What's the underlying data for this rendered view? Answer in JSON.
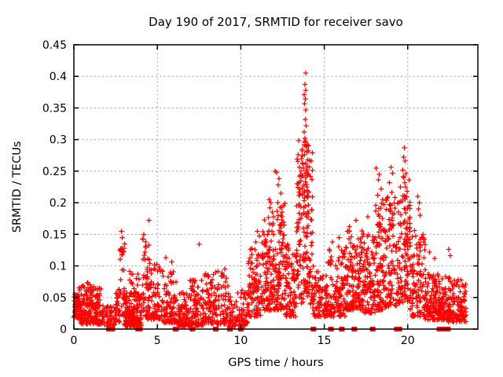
{
  "window": {
    "background": "#ffffff"
  },
  "chart_data": {
    "type": "scatter",
    "title": "Day 190 of 2017, SRMTID for receiver savo",
    "xlabel": "GPS time / hours",
    "ylabel": "SRMTID / TECUs",
    "xlim": [
      0,
      24.2
    ],
    "ylim": [
      0,
      0.45
    ],
    "xticks": [
      0,
      5,
      10,
      15,
      20
    ],
    "yticks": [
      0,
      0.05,
      0.1,
      0.15,
      0.2,
      0.25,
      0.3,
      0.35,
      0.4,
      0.45
    ],
    "ytick_labels": [
      "0",
      "0.05",
      "0.1",
      "0.15",
      "0.2",
      "0.25",
      "0.3",
      "0.35",
      "0.4",
      "0.45"
    ],
    "xtick_labels": [
      "0",
      "5",
      "10",
      "15",
      "20"
    ],
    "grid": {
      "style": "dotted",
      "color": "#a0a0a0"
    },
    "frame_color": "#000000",
    "marker": "plus",
    "marker_color": "#ff0000",
    "zero_marker": "filled-square",
    "seed": 7,
    "clusters_comment": "each cluster = [t_start, t_end, n_points, y_base, y_peak, skew] ; points drawn from t uniform, y = base+(peak-base)*u^skew (skew>1 concentrates near base) — encodes the density envelope read from the plot",
    "clusters": [
      [
        0.0,
        0.35,
        55,
        0.018,
        0.055,
        1.2
      ],
      [
        0.3,
        1.65,
        190,
        0.008,
        0.068,
        1.9
      ],
      [
        0.5,
        1.5,
        8,
        0.055,
        0.078,
        1.0
      ],
      [
        1.65,
        2.45,
        45,
        0.005,
        0.038,
        1.6
      ],
      [
        2.45,
        2.75,
        28,
        0.01,
        0.065,
        1.4
      ],
      [
        2.72,
        3.05,
        30,
        0.02,
        0.135,
        1.3
      ],
      [
        3.0,
        4.05,
        160,
        0.005,
        0.058,
        2.1
      ],
      [
        3.3,
        4.0,
        22,
        0.05,
        0.095,
        1.4
      ],
      [
        4.05,
        4.55,
        40,
        0.02,
        0.145,
        1.4
      ],
      [
        4.4,
        5.25,
        85,
        0.015,
        0.105,
        1.7
      ],
      [
        5.25,
        6.25,
        95,
        0.01,
        0.092,
        1.9
      ],
      [
        6.25,
        6.95,
        75,
        0.005,
        0.058,
        1.7
      ],
      [
        6.95,
        7.75,
        95,
        0.006,
        0.078,
        1.9
      ],
      [
        7.75,
        9.25,
        140,
        0.008,
        0.092,
        1.9
      ],
      [
        9.25,
        10.45,
        95,
        0.005,
        0.062,
        1.8
      ],
      [
        10.45,
        11.25,
        95,
        0.02,
        0.128,
        1.6
      ],
      [
        11.25,
        12.05,
        115,
        0.03,
        0.178,
        1.5
      ],
      [
        12.05,
        12.65,
        95,
        0.03,
        0.21,
        1.45
      ],
      [
        12.65,
        13.35,
        95,
        0.02,
        0.135,
        1.6
      ],
      [
        13.35,
        14.3,
        170,
        0.04,
        0.3,
        1.25
      ],
      [
        14.3,
        15.15,
        85,
        0.02,
        0.105,
        1.7
      ],
      [
        15.15,
        16.25,
        125,
        0.02,
        0.132,
        1.65
      ],
      [
        16.25,
        17.25,
        135,
        0.03,
        0.158,
        1.5
      ],
      [
        17.25,
        18.05,
        105,
        0.025,
        0.152,
        1.55
      ],
      [
        18.05,
        18.65,
        95,
        0.03,
        0.205,
        1.4
      ],
      [
        18.65,
        19.45,
        105,
        0.035,
        0.225,
        1.4
      ],
      [
        19.45,
        20.15,
        115,
        0.04,
        0.245,
        1.3
      ],
      [
        20.15,
        21.05,
        105,
        0.02,
        0.15,
        1.65
      ],
      [
        21.05,
        22.35,
        170,
        0.015,
        0.088,
        1.75
      ],
      [
        22.35,
        23.5,
        130,
        0.012,
        0.082,
        1.75
      ]
    ],
    "notable_points_comment": "standout extremes read directly off the plot as [t_hours, SRMTID_TECUs]",
    "notable_points": [
      [
        2.8,
        0.127
      ],
      [
        2.85,
        0.155
      ],
      [
        2.9,
        0.145
      ],
      [
        2.95,
        0.122
      ],
      [
        4.5,
        0.172
      ],
      [
        4.2,
        0.15
      ],
      [
        4.15,
        0.143
      ],
      [
        4.3,
        0.138
      ],
      [
        5.5,
        0.113
      ],
      [
        5.85,
        0.106
      ],
      [
        7.5,
        0.134
      ],
      [
        9.05,
        0.095
      ],
      [
        10.9,
        0.138
      ],
      [
        11.0,
        0.155
      ],
      [
        11.1,
        0.147
      ],
      [
        11.7,
        0.205
      ],
      [
        11.8,
        0.2
      ],
      [
        11.75,
        0.192
      ],
      [
        11.88,
        0.185
      ],
      [
        11.95,
        0.178
      ],
      [
        12.05,
        0.25
      ],
      [
        12.15,
        0.248
      ],
      [
        12.3,
        0.238
      ],
      [
        12.25,
        0.228
      ],
      [
        12.4,
        0.215
      ],
      [
        13.5,
        0.232
      ],
      [
        13.55,
        0.222
      ],
      [
        13.62,
        0.27
      ],
      [
        13.7,
        0.263
      ],
      [
        13.75,
        0.255
      ],
      [
        13.88,
        0.405
      ],
      [
        13.85,
        0.387
      ],
      [
        13.9,
        0.378
      ],
      [
        13.8,
        0.371
      ],
      [
        13.87,
        0.364
      ],
      [
        13.83,
        0.357
      ],
      [
        13.9,
        0.347
      ],
      [
        13.86,
        0.332
      ],
      [
        13.92,
        0.322
      ],
      [
        13.8,
        0.312
      ],
      [
        13.84,
        0.302
      ],
      [
        13.79,
        0.296
      ],
      [
        13.9,
        0.29
      ],
      [
        13.95,
        0.282
      ],
      [
        13.82,
        0.276
      ],
      [
        14.0,
        0.268
      ],
      [
        13.88,
        0.262
      ],
      [
        13.93,
        0.252
      ],
      [
        13.85,
        0.246
      ],
      [
        13.9,
        0.24
      ],
      [
        13.87,
        0.233
      ],
      [
        13.95,
        0.225
      ],
      [
        13.83,
        0.218
      ],
      [
        13.97,
        0.21
      ],
      [
        13.8,
        0.203
      ],
      [
        15.5,
        0.138
      ],
      [
        15.9,
        0.145
      ],
      [
        16.5,
        0.162
      ],
      [
        16.9,
        0.172
      ],
      [
        17.6,
        0.178
      ],
      [
        18.1,
        0.255
      ],
      [
        18.3,
        0.245
      ],
      [
        18.25,
        0.236
      ],
      [
        18.4,
        0.222
      ],
      [
        18.2,
        0.212
      ],
      [
        18.5,
        0.205
      ],
      [
        18.9,
        0.232
      ],
      [
        19.0,
        0.256
      ],
      [
        19.1,
        0.247
      ],
      [
        19.7,
        0.252
      ],
      [
        19.75,
        0.272
      ],
      [
        19.8,
        0.287
      ],
      [
        19.85,
        0.266
      ],
      [
        19.9,
        0.246
      ],
      [
        19.78,
        0.24
      ],
      [
        19.82,
        0.232
      ],
      [
        19.88,
        0.225
      ],
      [
        20.6,
        0.21
      ],
      [
        20.7,
        0.2
      ],
      [
        20.65,
        0.19
      ],
      [
        20.75,
        0.18
      ],
      [
        20.4,
        0.156
      ],
      [
        20.9,
        0.15
      ],
      [
        21.0,
        0.142
      ],
      [
        21.3,
        0.122
      ],
      [
        21.6,
        0.112
      ],
      [
        22.45,
        0.126
      ],
      [
        22.55,
        0.116
      ],
      [
        23.3,
        0.068
      ]
    ],
    "zero_marker_times": [
      2.1,
      2.3,
      3.85,
      3.95,
      6.1,
      7.1,
      8.5,
      9.35,
      10.0,
      14.35,
      15.4,
      16.05,
      16.8,
      17.9,
      19.35,
      19.5,
      21.9,
      22.1,
      22.4
    ]
  }
}
